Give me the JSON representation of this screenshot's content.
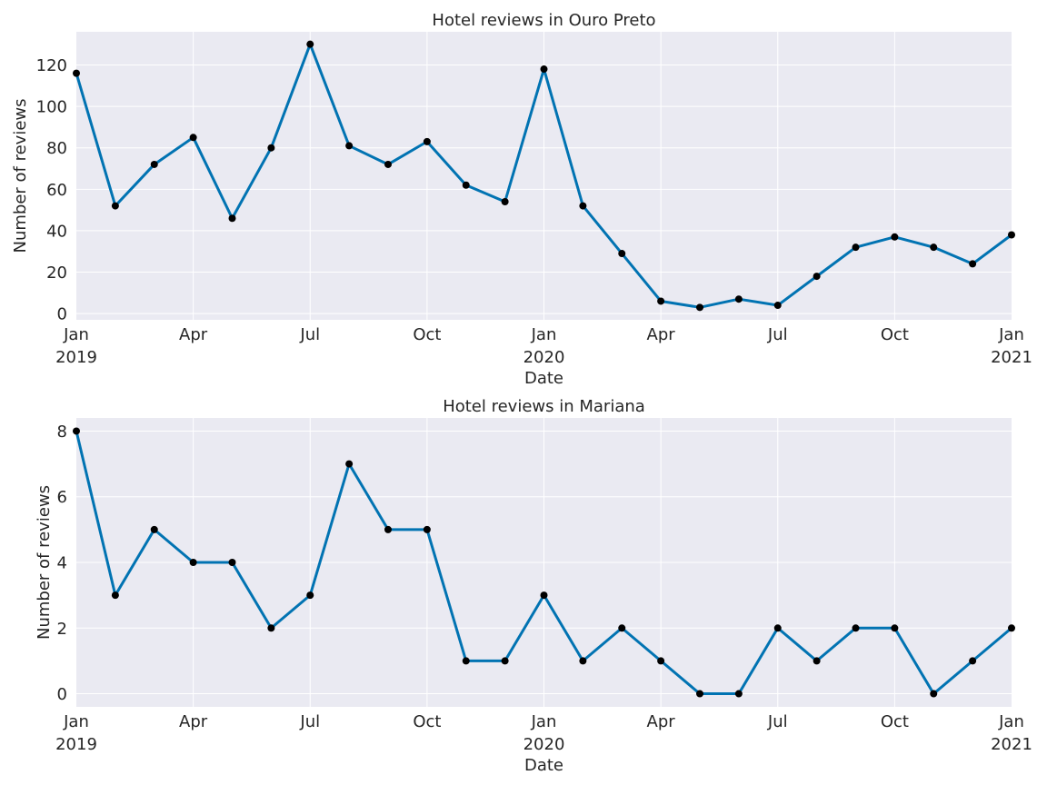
{
  "chart_data": [
    {
      "type": "line",
      "title": "Hotel reviews in Ouro Preto",
      "xlabel": "Date",
      "ylabel": "Number of reviews",
      "x": [
        "2019-01",
        "2019-02",
        "2019-03",
        "2019-04",
        "2019-05",
        "2019-06",
        "2019-07",
        "2019-08",
        "2019-09",
        "2019-10",
        "2019-11",
        "2019-12",
        "2020-01",
        "2020-02",
        "2020-03",
        "2020-04",
        "2020-05",
        "2020-06",
        "2020-07",
        "2020-08",
        "2020-09",
        "2020-10",
        "2020-11",
        "2020-12",
        "2021-01"
      ],
      "values": [
        116,
        52,
        72,
        85,
        46,
        80,
        130,
        81,
        72,
        83,
        62,
        54,
        118,
        52,
        29,
        6,
        3,
        7,
        4,
        18,
        32,
        37,
        32,
        24,
        38
      ],
      "ylim": [
        -3,
        136
      ],
      "yticks": [
        0,
        20,
        40,
        60,
        80,
        100,
        120
      ],
      "xticks": [
        {
          "x": "2019-01",
          "label": "Jan",
          "year": "2019"
        },
        {
          "x": "2019-04",
          "label": "Apr",
          "year": ""
        },
        {
          "x": "2019-07",
          "label": "Jul",
          "year": ""
        },
        {
          "x": "2019-10",
          "label": "Oct",
          "year": ""
        },
        {
          "x": "2020-01",
          "label": "Jan",
          "year": "2020"
        },
        {
          "x": "2020-04",
          "label": "Apr",
          "year": ""
        },
        {
          "x": "2020-07",
          "label": "Jul",
          "year": ""
        },
        {
          "x": "2020-10",
          "label": "Oct",
          "year": ""
        },
        {
          "x": "2021-01",
          "label": "Jan",
          "year": "2021"
        }
      ],
      "grid": true,
      "line_color": "#0173b2",
      "marker_color": "#000000",
      "background": "#eaeaf2"
    },
    {
      "type": "line",
      "title": "Hotel reviews in Mariana",
      "xlabel": "Date",
      "ylabel": "Number of reviews",
      "x": [
        "2019-01",
        "2019-02",
        "2019-03",
        "2019-04",
        "2019-05",
        "2019-06",
        "2019-07",
        "2019-08",
        "2019-09",
        "2019-10",
        "2019-11",
        "2019-12",
        "2020-01",
        "2020-02",
        "2020-03",
        "2020-04",
        "2020-05",
        "2020-06",
        "2020-07",
        "2020-08",
        "2020-09",
        "2020-10",
        "2020-11",
        "2020-12",
        "2021-01"
      ],
      "values": [
        8,
        3,
        5,
        4,
        4,
        2,
        3,
        7,
        5,
        5,
        1,
        1,
        3,
        1,
        2,
        1,
        0,
        0,
        2,
        1,
        2,
        2,
        0,
        1,
        2
      ],
      "ylim": [
        -0.4,
        8.4
      ],
      "yticks": [
        0,
        2,
        4,
        6,
        8
      ],
      "xticks": [
        {
          "x": "2019-01",
          "label": "Jan",
          "year": "2019"
        },
        {
          "x": "2019-04",
          "label": "Apr",
          "year": ""
        },
        {
          "x": "2019-07",
          "label": "Jul",
          "year": ""
        },
        {
          "x": "2019-10",
          "label": "Oct",
          "year": ""
        },
        {
          "x": "2020-01",
          "label": "Jan",
          "year": "2020"
        },
        {
          "x": "2020-04",
          "label": "Apr",
          "year": ""
        },
        {
          "x": "2020-07",
          "label": "Jul",
          "year": ""
        },
        {
          "x": "2020-10",
          "label": "Oct",
          "year": ""
        },
        {
          "x": "2021-01",
          "label": "Jan",
          "year": "2021"
        }
      ],
      "grid": true,
      "line_color": "#0173b2",
      "marker_color": "#000000",
      "background": "#eaeaf2"
    }
  ]
}
